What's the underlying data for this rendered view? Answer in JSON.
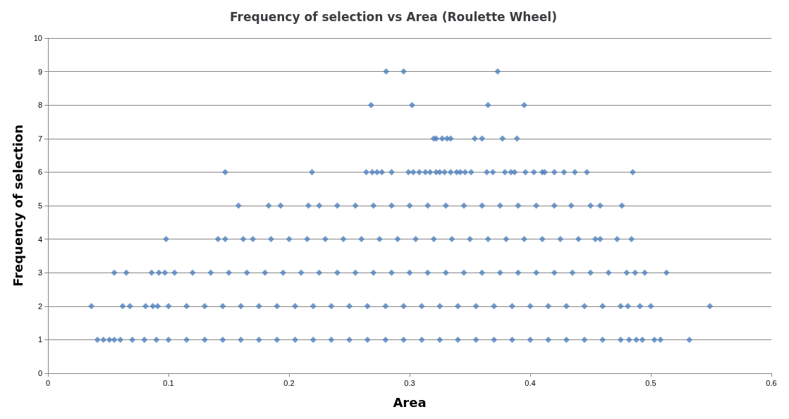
{
  "chart_data": {
    "type": "scatter",
    "title": "Frequency of selection vs Area (Roulette Wheel)",
    "xlabel": "Area",
    "ylabel": "Frequency of selection",
    "xlim": [
      0,
      0.6
    ],
    "xticks": [
      0,
      0.1,
      0.2,
      0.3,
      0.4,
      0.5,
      0.6
    ],
    "ylim": [
      0,
      10
    ],
    "yticks": [
      0,
      1,
      2,
      3,
      4,
      5,
      6,
      7,
      8,
      9,
      10
    ],
    "grid": "y",
    "marker": "diamond",
    "series": [
      {
        "color": "#4f81bd",
        "x": [
          0.041,
          0.046,
          0.051,
          0.055,
          0.06,
          0.07,
          0.08,
          0.09,
          0.1,
          0.115,
          0.13,
          0.145,
          0.16,
          0.175,
          0.19,
          0.205,
          0.22,
          0.235,
          0.25,
          0.265,
          0.28,
          0.295,
          0.31,
          0.325,
          0.34,
          0.355,
          0.37,
          0.385,
          0.4,
          0.415,
          0.43,
          0.445,
          0.46,
          0.475,
          0.482,
          0.488,
          0.493,
          0.503,
          0.508,
          0.532
        ],
        "values": [
          1,
          1,
          1,
          1,
          1,
          1,
          1,
          1,
          1,
          1,
          1,
          1,
          1,
          1,
          1,
          1,
          1,
          1,
          1,
          1,
          1,
          1,
          1,
          1,
          1,
          1,
          1,
          1,
          1,
          1,
          1,
          1,
          1,
          1,
          1,
          1,
          1,
          1,
          1,
          1
        ]
      },
      {
        "color": "#4f81bd",
        "x": [
          0.036,
          0.062,
          0.068,
          0.081,
          0.087,
          0.091,
          0.1,
          0.115,
          0.13,
          0.145,
          0.16,
          0.175,
          0.19,
          0.205,
          0.22,
          0.235,
          0.25,
          0.265,
          0.28,
          0.295,
          0.31,
          0.325,
          0.34,
          0.355,
          0.37,
          0.385,
          0.4,
          0.415,
          0.43,
          0.445,
          0.46,
          0.475,
          0.481,
          0.491,
          0.5,
          0.549
        ],
        "values": [
          2,
          2,
          2,
          2,
          2,
          2,
          2,
          2,
          2,
          2,
          2,
          2,
          2,
          2,
          2,
          2,
          2,
          2,
          2,
          2,
          2,
          2,
          2,
          2,
          2,
          2,
          2,
          2,
          2,
          2,
          2,
          2,
          2,
          2,
          2,
          2
        ]
      },
      {
        "color": "#4f81bd",
        "x": [
          0.055,
          0.065,
          0.086,
          0.092,
          0.097,
          0.105,
          0.12,
          0.135,
          0.15,
          0.165,
          0.18,
          0.195,
          0.21,
          0.225,
          0.24,
          0.255,
          0.27,
          0.285,
          0.3,
          0.315,
          0.33,
          0.345,
          0.36,
          0.375,
          0.39,
          0.405,
          0.42,
          0.435,
          0.45,
          0.465,
          0.48,
          0.487,
          0.495,
          0.513
        ],
        "values": [
          3,
          3,
          3,
          3,
          3,
          3,
          3,
          3,
          3,
          3,
          3,
          3,
          3,
          3,
          3,
          3,
          3,
          3,
          3,
          3,
          3,
          3,
          3,
          3,
          3,
          3,
          3,
          3,
          3,
          3,
          3,
          3,
          3,
          3
        ]
      },
      {
        "color": "#4f81bd",
        "x": [
          0.098,
          0.141,
          0.147,
          0.162,
          0.17,
          0.185,
          0.2,
          0.215,
          0.23,
          0.245,
          0.26,
          0.275,
          0.29,
          0.305,
          0.32,
          0.335,
          0.35,
          0.365,
          0.38,
          0.395,
          0.41,
          0.425,
          0.44,
          0.454,
          0.458,
          0.472,
          0.484
        ],
        "values": [
          4,
          4,
          4,
          4,
          4,
          4,
          4,
          4,
          4,
          4,
          4,
          4,
          4,
          4,
          4,
          4,
          4,
          4,
          4,
          4,
          4,
          4,
          4,
          4,
          4,
          4,
          4
        ]
      },
      {
        "color": "#4f81bd",
        "x": [
          0.158,
          0.183,
          0.193,
          0.216,
          0.225,
          0.24,
          0.255,
          0.27,
          0.285,
          0.3,
          0.315,
          0.33,
          0.345,
          0.36,
          0.375,
          0.39,
          0.405,
          0.42,
          0.434,
          0.45,
          0.458,
          0.476
        ],
        "values": [
          5,
          5,
          5,
          5,
          5,
          5,
          5,
          5,
          5,
          5,
          5,
          5,
          5,
          5,
          5,
          5,
          5,
          5,
          5,
          5,
          5,
          5
        ]
      },
      {
        "color": "#4f81bd",
        "x": [
          0.147,
          0.219,
          0.264,
          0.269,
          0.273,
          0.277,
          0.285,
          0.299,
          0.303,
          0.308,
          0.313,
          0.317,
          0.322,
          0.325,
          0.329,
          0.334,
          0.339,
          0.342,
          0.346,
          0.351,
          0.364,
          0.369,
          0.379,
          0.384,
          0.387,
          0.396,
          0.403,
          0.41,
          0.412,
          0.42,
          0.428,
          0.437,
          0.447,
          0.485
        ],
        "values": [
          6,
          6,
          6,
          6,
          6,
          6,
          6,
          6,
          6,
          6,
          6,
          6,
          6,
          6,
          6,
          6,
          6,
          6,
          6,
          6,
          6,
          6,
          6,
          6,
          6,
          6,
          6,
          6,
          6,
          6,
          6,
          6,
          6,
          6
        ]
      },
      {
        "color": "#4f81bd",
        "x": [
          0.32,
          0.322,
          0.327,
          0.331,
          0.334,
          0.354,
          0.36,
          0.377,
          0.389
        ],
        "values": [
          7,
          7,
          7,
          7,
          7,
          7,
          7,
          7,
          7
        ]
      },
      {
        "color": "#4f81bd",
        "x": [
          0.268,
          0.302,
          0.365,
          0.395
        ],
        "values": [
          8,
          8,
          8,
          8
        ]
      },
      {
        "color": "#4f81bd",
        "x": [
          0.2805,
          0.295,
          0.373
        ],
        "values": [
          9,
          9,
          9
        ]
      }
    ]
  }
}
